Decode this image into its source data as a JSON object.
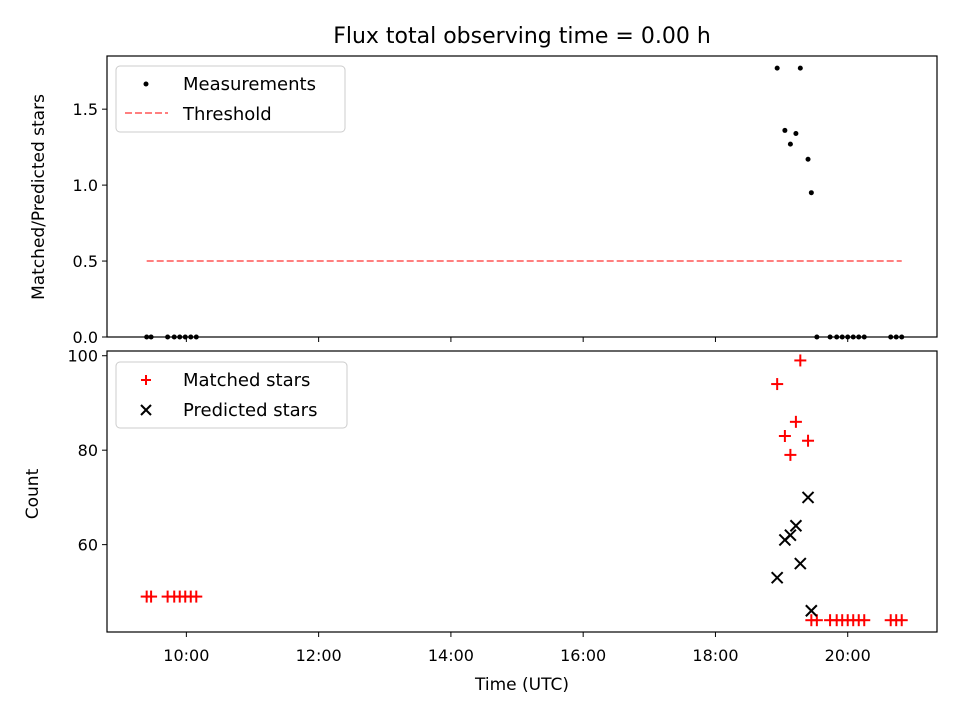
{
  "title": "Flux total observing time = 0.00 h",
  "xlabel": "Time (UTC)",
  "x_range_hours": [
    8.8,
    21.35
  ],
  "x_ticks": [
    {
      "hours": 10,
      "label": "10:00"
    },
    {
      "hours": 12,
      "label": "12:00"
    },
    {
      "hours": 14,
      "label": "14:00"
    },
    {
      "hours": 16,
      "label": "16:00"
    },
    {
      "hours": 18,
      "label": "18:00"
    },
    {
      "hours": 20,
      "label": "20:00"
    }
  ],
  "chart_data": [
    {
      "type": "scatter",
      "ylabel": "Matched/Predicted stars",
      "ylim": [
        0,
        1.85
      ],
      "y_ticks": [
        {
          "value": 0.0,
          "label": "0.0"
        },
        {
          "value": 0.5,
          "label": "0.5"
        },
        {
          "value": 1.0,
          "label": "1.0"
        },
        {
          "value": 1.5,
          "label": "1.5"
        }
      ],
      "legend_position": "upper-left",
      "series": [
        {
          "name": "Measurements",
          "kind": "points",
          "color": "#000000",
          "x": [
            "09:24",
            "09:28",
            "09:43",
            "09:49",
            "09:54",
            "09:59",
            "10:04",
            "10:09",
            "18:56",
            "19:03",
            "19:08",
            "19:13",
            "19:17",
            "19:24",
            "19:27",
            "19:32",
            "19:44",
            "19:50",
            "19:55",
            "20:00",
            "20:05",
            "20:10",
            "20:15",
            "20:39",
            "20:44",
            "20:49"
          ],
          "y": [
            0,
            0,
            0,
            0,
            0,
            0,
            0,
            0,
            1.77,
            1.36,
            1.27,
            1.34,
            1.77,
            1.17,
            0.95,
            0,
            0,
            0,
            0,
            0,
            0,
            0,
            0,
            0,
            0,
            0
          ]
        },
        {
          "name": "Threshold",
          "kind": "dashed-line",
          "color": "#ff7f7f",
          "x": [
            "09:24",
            "20:49"
          ],
          "y": [
            0.5,
            0.5
          ]
        }
      ]
    },
    {
      "type": "scatter",
      "ylabel": "Count",
      "xlabel": "Time (UTC)",
      "ylim": [
        41.5,
        101
      ],
      "y_ticks": [
        {
          "value": 60,
          "label": "60"
        },
        {
          "value": 80,
          "label": "80"
        },
        {
          "value": 100,
          "label": "100"
        }
      ],
      "legend_position": "upper-left",
      "series": [
        {
          "name": "Matched stars",
          "marker": "plus",
          "color": "#ff0000",
          "x": [
            "09:24",
            "09:28",
            "09:43",
            "09:49",
            "09:54",
            "09:59",
            "10:04",
            "10:09",
            "18:56",
            "19:03",
            "19:08",
            "19:13",
            "19:17",
            "19:24",
            "19:27",
            "19:32",
            "19:44",
            "19:50",
            "19:55",
            "20:00",
            "20:05",
            "20:10",
            "20:15",
            "20:39",
            "20:44",
            "20:49"
          ],
          "y": [
            49,
            49,
            49,
            49,
            49,
            49,
            49,
            49,
            94,
            83,
            79,
            86,
            99,
            82,
            44,
            44,
            44,
            44,
            44,
            44,
            44,
            44,
            44,
            44,
            44,
            44
          ]
        },
        {
          "name": "Predicted stars",
          "marker": "x",
          "color": "#000000",
          "x": [
            "18:56",
            "19:03",
            "19:08",
            "19:13",
            "19:17",
            "19:24",
            "19:27"
          ],
          "y": [
            53,
            61,
            62,
            64,
            56,
            70,
            46
          ]
        }
      ]
    }
  ]
}
